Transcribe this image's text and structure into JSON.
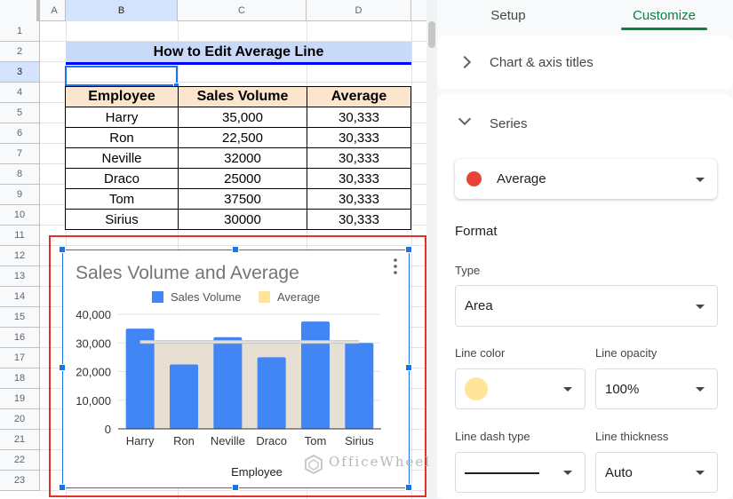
{
  "sheet": {
    "columns": [
      "A",
      "B",
      "C",
      "D"
    ],
    "rows": [
      "1",
      "2",
      "3",
      "4",
      "5",
      "6",
      "7",
      "8",
      "9",
      "10",
      "11",
      "12",
      "13",
      "14",
      "15",
      "16",
      "17",
      "18",
      "19",
      "20",
      "21",
      "22",
      "23"
    ],
    "title": "How to Edit Average Line",
    "table": {
      "headers": [
        "Employee",
        "Sales Volume",
        "Average"
      ],
      "rows": [
        [
          "Harry",
          "35,000",
          "30,333"
        ],
        [
          "Ron",
          "22,500",
          "30,333"
        ],
        [
          "Neville",
          "32000",
          "30,333"
        ],
        [
          "Draco",
          "25000",
          "30,333"
        ],
        [
          "Tom",
          "37500",
          "30,333"
        ],
        [
          "Sirius",
          "30000",
          "30,333"
        ]
      ]
    }
  },
  "chart_data": {
    "type": "bar",
    "title": "Sales Volume and Average",
    "xlabel": "Employee",
    "ylabel": "",
    "categories": [
      "Harry",
      "Ron",
      "Neville",
      "Draco",
      "Tom",
      "Sirius"
    ],
    "series": [
      {
        "name": "Sales Volume",
        "type": "bar",
        "color": "#4285f4",
        "values": [
          35000,
          22500,
          32000,
          25000,
          37500,
          30000
        ]
      },
      {
        "name": "Average",
        "type": "area",
        "color": "#ffe599",
        "values": [
          30333,
          30333,
          30333,
          30333,
          30333,
          30333
        ]
      }
    ],
    "yticks": [
      "0",
      "10,000",
      "20,000",
      "30,000",
      "40,000"
    ],
    "ylim": [
      0,
      40000
    ],
    "legend": "top",
    "grid": true
  },
  "watermark": "OfficeWheel",
  "panel": {
    "tabs": [
      "Setup",
      "Customize"
    ],
    "active_tab": "Customize",
    "sections": {
      "chart_titles": "Chart & axis titles",
      "series": "Series"
    },
    "series_selected": "Average",
    "series_color": "#ea4335",
    "format_title": "Format",
    "type_label": "Type",
    "type_value": "Area",
    "line_color_label": "Line color",
    "line_color_value": "#ffe599",
    "line_opacity_label": "Line opacity",
    "line_opacity_value": "100%",
    "line_dash_label": "Line dash type",
    "line_thickness_label": "Line thickness",
    "line_thickness_value": "Auto"
  }
}
